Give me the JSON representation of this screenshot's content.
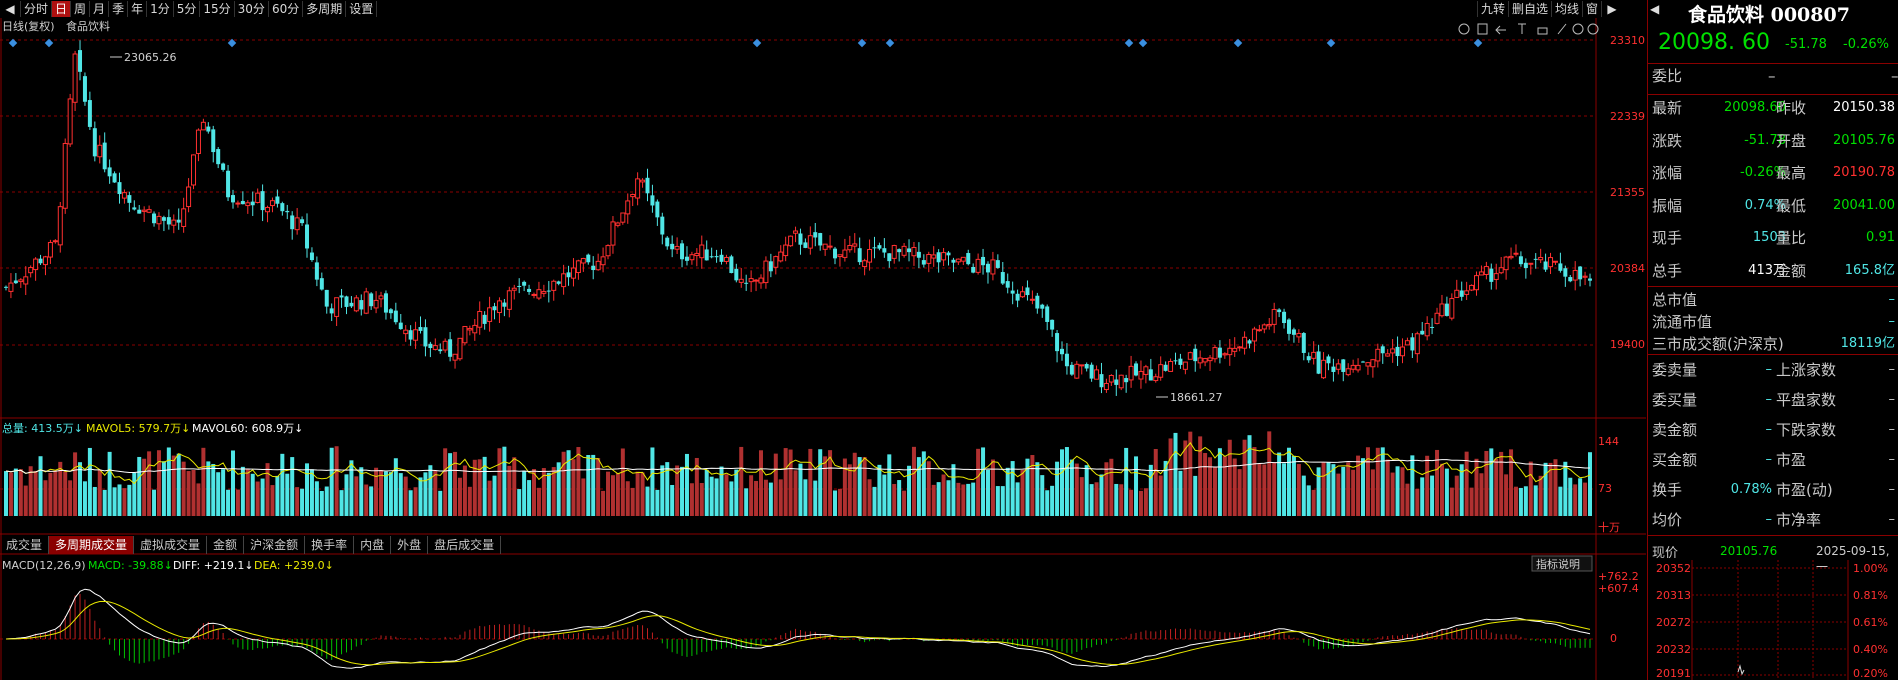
{
  "toolbar": {
    "items": [
      "分时",
      "日",
      "周",
      "月",
      "季",
      "年",
      "1分",
      "5分",
      "15分",
      "30分",
      "60分",
      "多周期",
      "设置"
    ],
    "active": "日",
    "right_items": [
      "九转",
      "删自选",
      "均线",
      "窗"
    ]
  },
  "chart": {
    "period_label": "日线(复权)",
    "name_label": "食品饮料",
    "price_axis": [
      "23310",
      "22339",
      "21355",
      "20384",
      "19400"
    ],
    "max_label": "23065.26",
    "min_label": "18661.27",
    "vol_header": {
      "total": "总量: 413.5万↓",
      "mavol5": "MAVOL5: 579.7万↓",
      "mavol60": "MAVOL60: 608.9万↓"
    },
    "vol_axis": [
      "144",
      "73",
      "十万"
    ],
    "macd_header": {
      "name": "MACD(12,26,9)",
      "macd": "MACD: -39.88↓",
      "diff": "DIFF: +219.1↓",
      "dea": "DEA: +239.0↓"
    },
    "macd_axis": [
      "+762.2",
      "+607.4",
      "0"
    ],
    "indicator_button": "指标说明",
    "colors": {
      "up": "#ff3030",
      "down": "#50e6e6",
      "grid": "#8a0000",
      "ma_white": "#ffffff",
      "ma_yellow": "#e8e800"
    }
  },
  "chart_data": {
    "type": "candlestick",
    "ylim": [
      18500,
      23310
    ],
    "ohlc_summary": {
      "max_high": 23065.26,
      "min_low": 18661.27,
      "last_close": 20098.6
    }
  },
  "tabs": [
    "成交量",
    "多周期成交量",
    "虚拟成交量",
    "金额",
    "沪深金额",
    "换手率",
    "内盘",
    "外盘",
    "盘后成交量"
  ],
  "active_tab": "多周期成交量",
  "quote": {
    "name": "食品饮料 000807",
    "price": "20098. 60",
    "change": "-51.78",
    "change_pct": "-0.26%",
    "weibi_label": "委比",
    "weibi_value": "–",
    "weibi_value2": "–",
    "rows": [
      {
        "l1": "最新",
        "v1": "20098.60",
        "c1": "green",
        "l2": "昨收",
        "v2": "20150.38",
        "c2": "white"
      },
      {
        "l1": "涨跌",
        "v1": "-51.78",
        "c1": "green",
        "l2": "开盘",
        "v2": "20105.76",
        "c2": "green"
      },
      {
        "l1": "涨幅",
        "v1": "-0.26%",
        "c1": "green",
        "l2": "最高",
        "v2": "20190.78",
        "c2": "red"
      },
      {
        "l1": "振幅",
        "v1": "0.74%",
        "c1": "cyan",
        "l2": "最低",
        "v2": "20041.00",
        "c2": "green"
      },
      {
        "l1": "现手",
        "v1": "1503",
        "c1": "cyan",
        "l2": "量比",
        "v2": "0.91",
        "c2": "green"
      },
      {
        "l1": "总手",
        "v1": "413万",
        "c1": "white",
        "l2": "金额",
        "v2": "165.8亿",
        "c2": "cyan"
      }
    ],
    "market": [
      {
        "l": "总市值",
        "v": "–"
      },
      {
        "l": "流通市值",
        "v": "–"
      },
      {
        "l": "三市成交额(沪深京)",
        "v": "18119亿"
      }
    ],
    "flow": [
      {
        "l1": "委卖量",
        "v1": "–",
        "l2": "上涨家数",
        "v2": "–"
      },
      {
        "l1": "委买量",
        "v1": "–",
        "l2": "平盘家数",
        "v2": "–"
      },
      {
        "l1": "卖金额",
        "v1": "–",
        "l2": "下跌家数",
        "v2": "–"
      },
      {
        "l1": "买金额",
        "v1": "–",
        "l2": "市盈",
        "v2": "–"
      },
      {
        "l1": "换手",
        "v1": "0.78%",
        "l2": "市盈(动)",
        "v2": "–"
      },
      {
        "l1": "均价",
        "v1": "–",
        "l2": "市净率",
        "v2": "–"
      }
    ],
    "mini": {
      "label": "现价",
      "price": "20105.76",
      "date": "2025-09-15,一",
      "left_axis": [
        "20352",
        "20313",
        "20272",
        "20232",
        "20191"
      ],
      "right_axis": [
        "1.00%",
        "0.81%",
        "0.61%",
        "0.40%",
        "0.20%"
      ]
    }
  }
}
